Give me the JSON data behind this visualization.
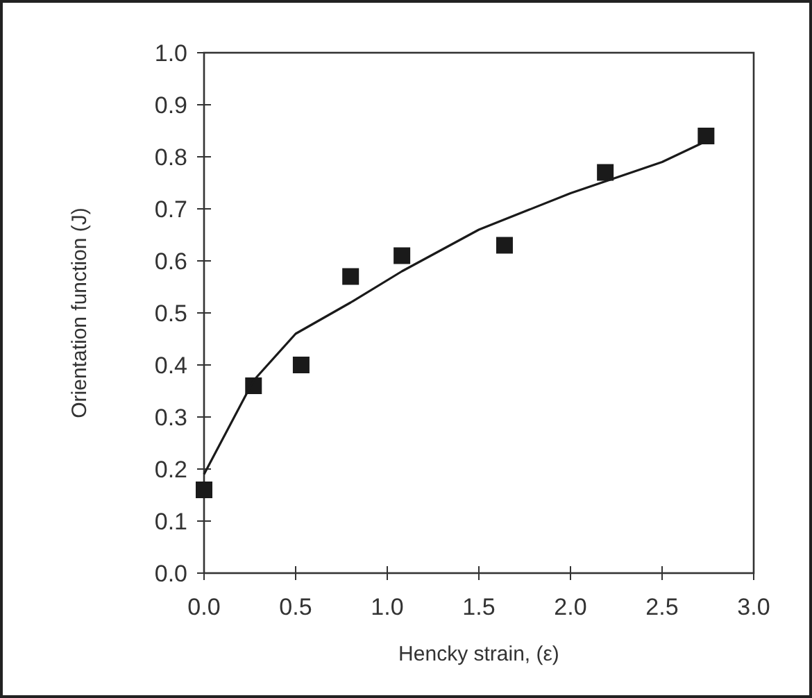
{
  "chart_data": {
    "type": "scatter",
    "xlabel": "Hencky strain, (ε)",
    "ylabel": "Orientation function (J)",
    "xlim": [
      0,
      3
    ],
    "xticks": [
      {
        "value": 0,
        "label": "0.0"
      },
      0.5,
      {
        "value": 1,
        "label": "1.0"
      },
      1.5,
      {
        "value": 2,
        "label": "2.0"
      },
      2.5,
      {
        "value": 3,
        "label": "3.0"
      }
    ],
    "ylim": [
      0,
      1
    ],
    "yticks": [
      {
        "value": 0,
        "label": "0.0"
      },
      0.1,
      0.2,
      0.3,
      0.4,
      0.5,
      0.6,
      0.7,
      0.8,
      0.9,
      {
        "value": 1,
        "label": "1.0"
      }
    ],
    "grid": false,
    "series": [
      {
        "marker": "square",
        "color": "#1a1a1a",
        "x": [
          0,
          0.27,
          0.53,
          0.8,
          1.08,
          1.64,
          2.19,
          2.74
        ],
        "values": [
          0.16,
          0.36,
          0.4,
          0.57,
          0.61,
          0.63,
          0.77,
          0.84
        ]
      },
      {
        "type": "line",
        "marker": "none",
        "line_style": "solid",
        "color": "#1a1a1a",
        "x": [
          0,
          0.27,
          0.5,
          0.8,
          1.08,
          1.5,
          2,
          2.5,
          2.74
        ],
        "values": [
          0.19,
          0.37,
          0.46,
          0.52,
          0.58,
          0.66,
          0.73,
          0.79,
          0.83
        ]
      }
    ]
  }
}
